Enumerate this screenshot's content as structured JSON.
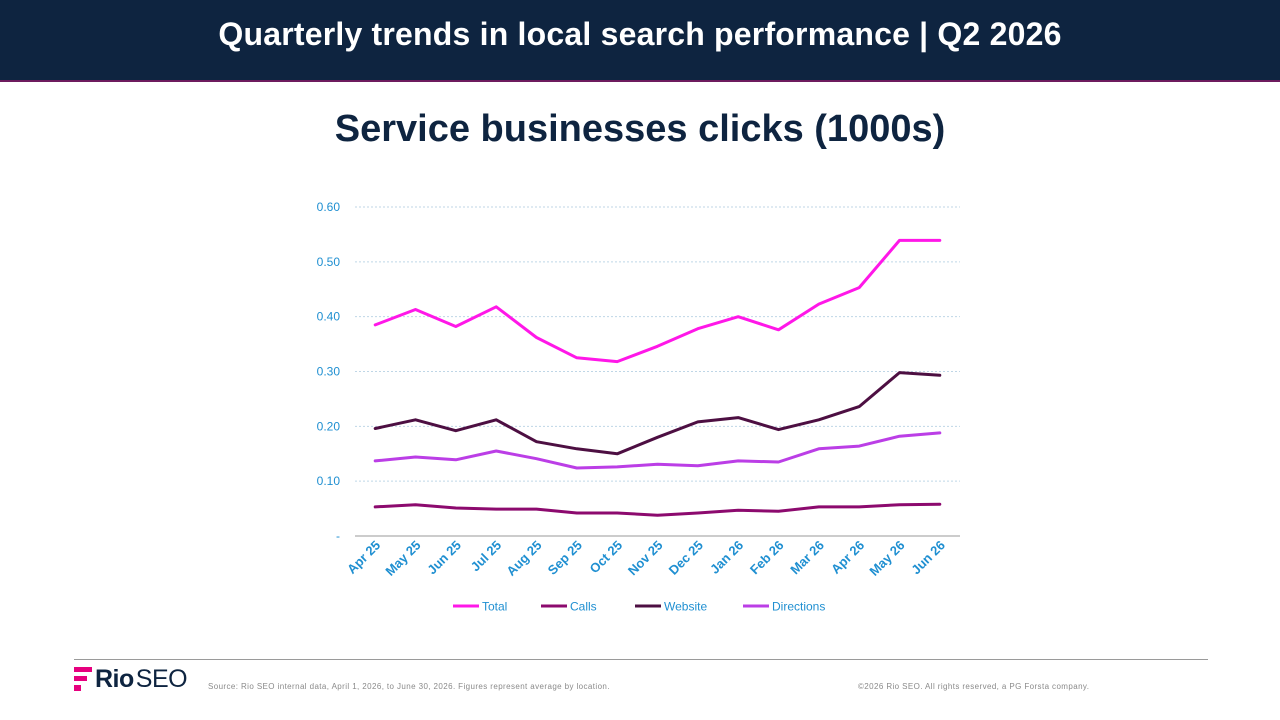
{
  "header": {
    "title": "Quarterly trends in local search performance | Q2 2026"
  },
  "colors": {
    "banner_bg": "#0e2440",
    "title_text": "#0e2440",
    "axis_label": "#1f8fd1",
    "gridline": "#bfd6e6",
    "brand_accent": "#e6007e"
  },
  "chart_data": {
    "type": "line",
    "title": "Service businesses clicks (1000s)",
    "xlabel": "",
    "ylabel": "",
    "ylim": [
      0,
      0.6
    ],
    "yticks": [
      0,
      0.1,
      0.2,
      0.3,
      0.4,
      0.5,
      0.6
    ],
    "ytick_labels": [
      "-",
      "0.10",
      "0.20",
      "0.30",
      "0.40",
      "0.50",
      "0.60"
    ],
    "grid": true,
    "legend_position": "bottom",
    "categories": [
      "Apr 25",
      "May 25",
      "Jun 25",
      "Jul 25",
      "Aug 25",
      "Sep 25",
      "Oct 25",
      "Nov 25",
      "Dec 25",
      "Jan 26",
      "Feb 26",
      "Mar 26",
      "Apr 26",
      "May 26",
      "Jun 26"
    ],
    "series": [
      {
        "name": "Total",
        "color": "#ff17e8",
        "values": [
          0.385,
          0.413,
          0.382,
          0.418,
          0.362,
          0.325,
          0.318,
          0.346,
          0.378,
          0.4,
          0.376,
          0.423,
          0.453,
          0.539,
          0.539
        ]
      },
      {
        "name": "Calls",
        "color": "#8c0a6e",
        "values": [
          0.053,
          0.057,
          0.051,
          0.049,
          0.049,
          0.042,
          0.042,
          0.038,
          0.042,
          0.047,
          0.045,
          0.053,
          0.053,
          0.057,
          0.058
        ]
      },
      {
        "name": "Website",
        "color": "#4d0f42",
        "values": [
          0.196,
          0.212,
          0.192,
          0.212,
          0.172,
          0.159,
          0.15,
          0.18,
          0.208,
          0.216,
          0.194,
          0.212,
          0.236,
          0.298,
          0.293
        ]
      },
      {
        "name": "Directions",
        "color": "#bb3ee6",
        "values": [
          0.137,
          0.144,
          0.139,
          0.155,
          0.141,
          0.124,
          0.126,
          0.131,
          0.128,
          0.137,
          0.135,
          0.159,
          0.164,
          0.182,
          0.188
        ]
      }
    ]
  },
  "footer": {
    "logo_primary": "Rio",
    "logo_secondary": "SEO",
    "source": "Source: Rio SEO internal data, April 1, 2026, to June 30, 2026. Figures represent average by location.",
    "copyright": "©2026 Rio SEO. All rights reserved, a PG Forsta company."
  }
}
